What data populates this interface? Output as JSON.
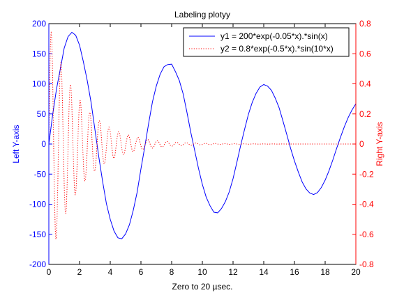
{
  "chart_data": {
    "type": "line",
    "title": "Labeling plotyy",
    "xlabel": "Zero to 20 µsec.",
    "ylabel_left": "Left Y-axis",
    "ylabel_right": "Right Y-axis",
    "xlim": [
      0,
      20
    ],
    "ylim_left": [
      -200,
      200
    ],
    "ylim_right": [
      -0.8,
      0.8
    ],
    "x_ticks": [
      "0",
      "2",
      "4",
      "6",
      "8",
      "10",
      "12",
      "14",
      "16",
      "18",
      "20"
    ],
    "y_left_ticks": [
      "-200",
      "-150",
      "-100",
      "-50",
      "0",
      "50",
      "100",
      "150",
      "200"
    ],
    "y_right_ticks": [
      "-0.8",
      "-0.6",
      "-0.4",
      "-0.2",
      "0",
      "0.2",
      "0.4",
      "0.6",
      "0.8"
    ],
    "grid": false,
    "legend_position": "top-right",
    "x": [
      0,
      0.25,
      0.5,
      0.75,
      1.0,
      1.25,
      1.5,
      1.75,
      2.0,
      2.25,
      2.5,
      2.75,
      3.0,
      3.25,
      3.5,
      3.75,
      4.0,
      4.25,
      4.5,
      4.75,
      5.0,
      5.25,
      5.5,
      5.75,
      6.0,
      6.25,
      6.5,
      6.75,
      7.0,
      7.25,
      7.5,
      7.75,
      8.0,
      8.25,
      8.5,
      8.75,
      9.0,
      9.25,
      9.5,
      9.75,
      10.0,
      10.25,
      10.5,
      10.75,
      11.0,
      11.25,
      11.5,
      11.75,
      12.0,
      12.25,
      12.5,
      12.75,
      13.0,
      13.25,
      13.5,
      13.75,
      14.0,
      14.25,
      14.5,
      14.75,
      15.0,
      15.25,
      15.5,
      15.75,
      16.0,
      16.25,
      16.5,
      16.75,
      17.0,
      17.25,
      17.5,
      17.75,
      18.0,
      18.25,
      18.5,
      18.75,
      19.0,
      19.25,
      19.5,
      19.75,
      20.0
    ],
    "series": [
      {
        "name": "y1 = 200*exp(-0.05*x).*sin(x)",
        "axis": "left",
        "color": "#0000ff",
        "style": "solid",
        "values": [
          0.0,
          48.9,
          91.6,
          125.0,
          159.4,
          178.4,
          185.7,
          180.7,
          164.3,
          136.5,
          105.5,
          69.4,
          24.4,
          -20.6,
          -61.7,
          -99.1,
          -125.2,
          -144.8,
          -155.8,
          -157.4,
          -149.4,
          -134.1,
          -109.9,
          -80.3,
          -41.3,
          -4.4,
          34.0,
          70.1,
          96.4,
          115.9,
          128.3,
          132.1,
          132.7,
          120.1,
          105.4,
          83.2,
          52.1,
          19.1,
          -10.6,
          -40.7,
          -67.1,
          -88.2,
          -102.6,
          -113.3,
          -114.3,
          -107.1,
          -95.7,
          -79.6,
          -57.6,
          -30.2,
          -2.0,
          24.3,
          49.3,
          69.1,
          84.2,
          94.7,
          98.8,
          96.2,
          89.2,
          76.2,
          60.2,
          38.4,
          15.9,
          -7.3,
          -28.1,
          -46.4,
          -62.9,
          -74.6,
          -81.5,
          -83.9,
          -80.7,
          -72.3,
          -60.0,
          -44.4,
          -26.5,
          -7.0,
          11.3,
          28.7,
          44.0,
          56.6,
          66.8
        ]
      },
      {
        "name": "y2 = 0.8*exp(-0.5*x).*sin(10*x)",
        "axis": "right",
        "color": "#ff0000",
        "style": "dotted"
      }
    ]
  }
}
